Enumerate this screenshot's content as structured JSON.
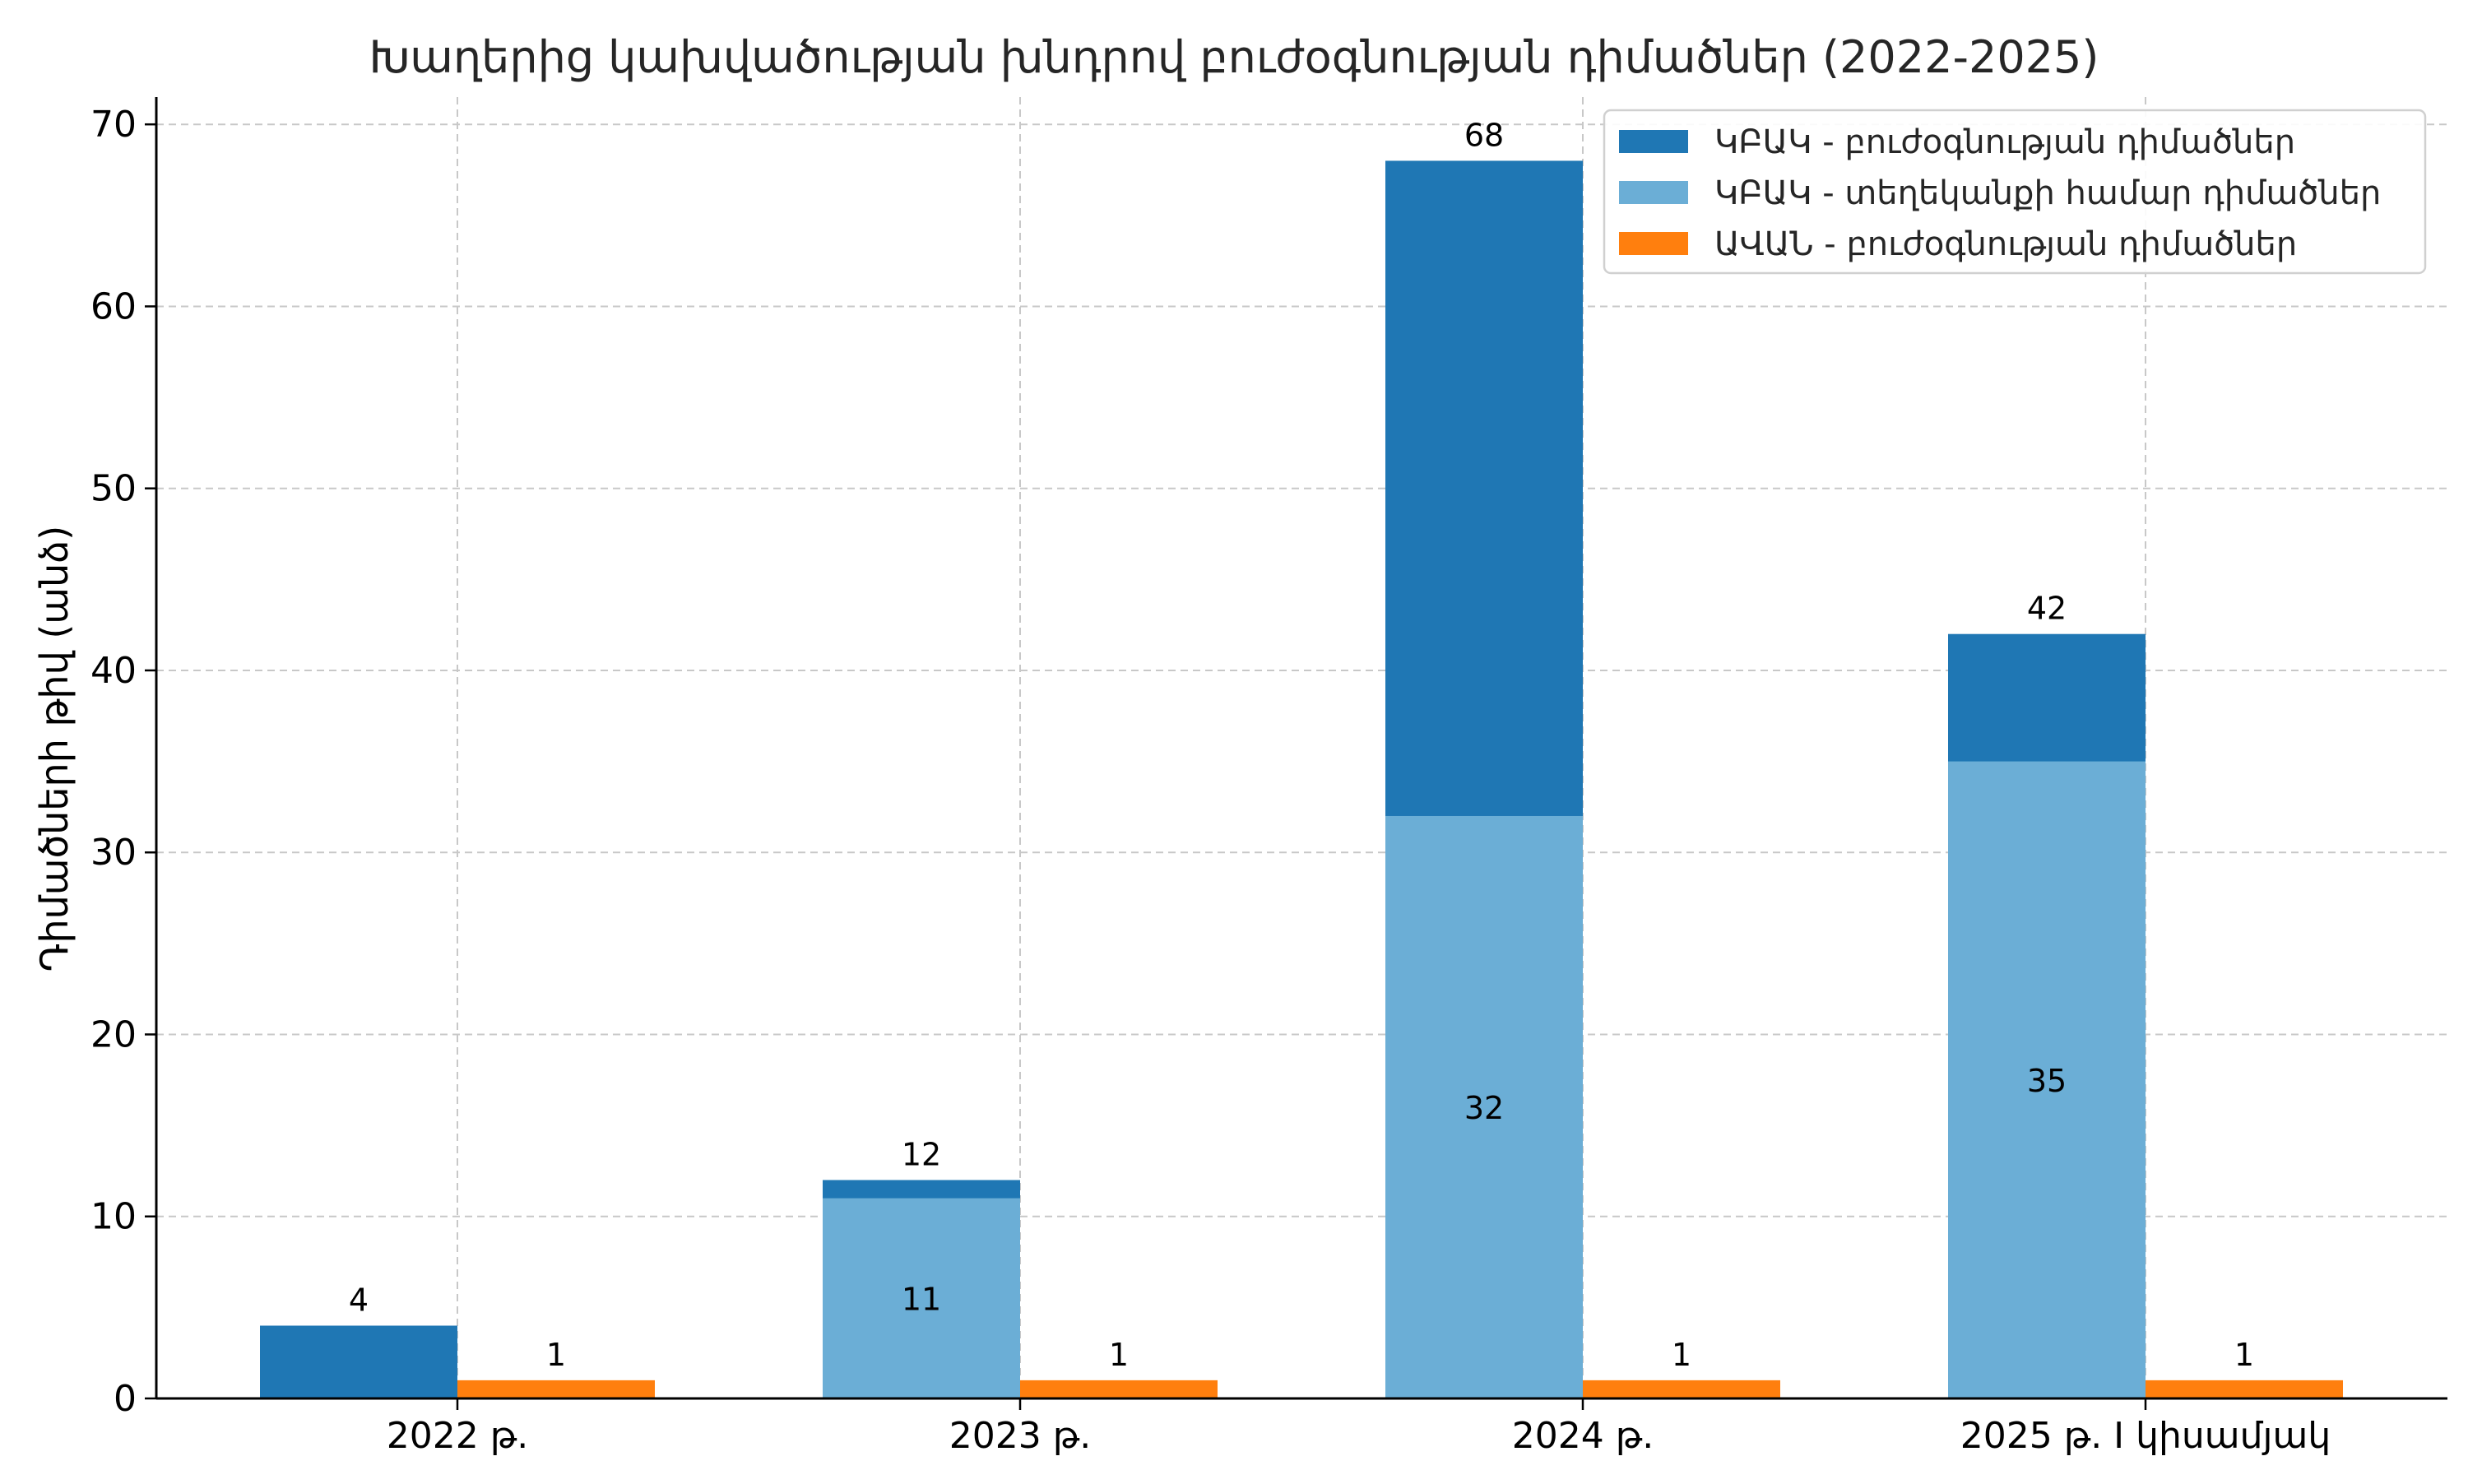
{
  "chart_data": {
    "type": "bar",
    "title": "Խաղերից կախվածության խնդրով բուժօգնության դիմածներ (2022-2025)",
    "xlabel": "",
    "ylabel": "Դիմածների թիվ (անձ)",
    "categories": [
      "2022 թ.",
      "2023 թ.",
      "2024 թ.",
      "2025 թ. I կիսամյակ"
    ],
    "ylim": [
      0,
      71.5
    ],
    "yticks": [
      0,
      10,
      20,
      30,
      40,
      50,
      60,
      70
    ],
    "grid": true,
    "legend_position": "top-right",
    "series": [
      {
        "name": "ԿԲԱԿ - բուժօգնության դիմածներ",
        "group": "left",
        "color": "#1f77b4",
        "totals": [
          4,
          12,
          68,
          42
        ],
        "total_labels": [
          "4",
          "12",
          "68",
          "42"
        ]
      },
      {
        "name": "ԿԲԱԿ - տեղեկանքի համար դիմածներ",
        "group": "left",
        "color": "#6baed6",
        "values": [
          null,
          11,
          32,
          35
        ],
        "labels": [
          "",
          "11",
          "32",
          "35"
        ]
      },
      {
        "name": "ԱՎԱՆ - բուժօգնության դիմածներ",
        "group": "right",
        "color": "#ff7f0e",
        "values": [
          1,
          1,
          1,
          1
        ],
        "labels": [
          "1",
          "1",
          "1",
          "1"
        ]
      }
    ]
  }
}
